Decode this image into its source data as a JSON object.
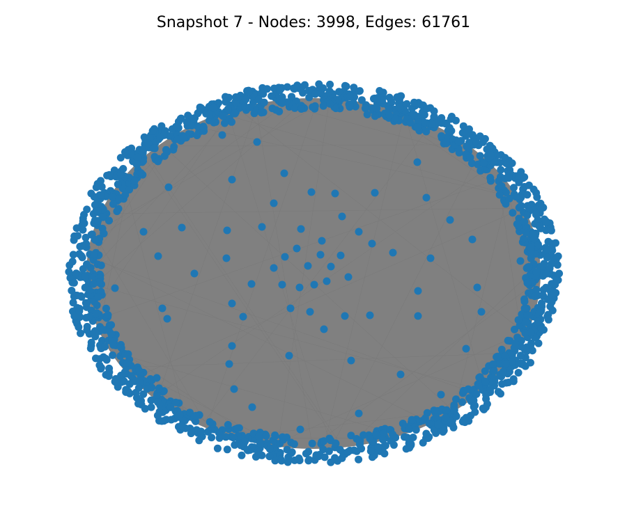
{
  "title": "Snapshot 7 - Nodes: 3998, Edges: 61761",
  "graph": {
    "layout": "spring",
    "node_count": 3998,
    "edge_count": 61761,
    "colors": {
      "node": "#1f77b4",
      "edge": "#808080",
      "background": "#ffffff"
    }
  }
}
